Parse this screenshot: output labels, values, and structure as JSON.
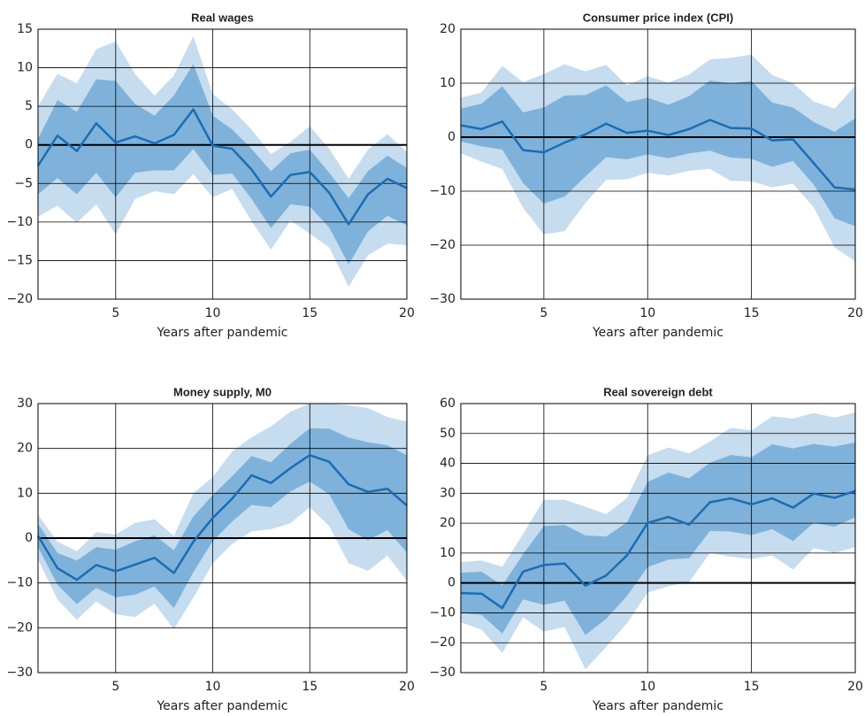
{
  "chart_data": [
    {
      "type": "line",
      "title": "Real wages",
      "xlabel": "Years after pandemic",
      "x": [
        1,
        2,
        3,
        4,
        5,
        6,
        7,
        8,
        9,
        10,
        11,
        12,
        13,
        14,
        15,
        16,
        17,
        18,
        19,
        20
      ],
      "xlim": [
        1,
        20
      ],
      "xticks": [
        5,
        10,
        15,
        20
      ],
      "ylim": [
        -20,
        15
      ],
      "yticks": [
        {
          "value": -20,
          "label": "−20"
        },
        {
          "value": -15,
          "label": "−15"
        },
        {
          "value": -10,
          "label": "−10"
        },
        {
          "value": -5,
          "label": "−5"
        },
        0,
        5,
        10,
        15
      ],
      "grid": true,
      "bands": [
        {
          "color": "#c6dcef",
          "upper": [
            5.0,
            9.2,
            8.0,
            12.4,
            13.4,
            9.2,
            6.4,
            9.0,
            14.1,
            6.6,
            4.6,
            2.0,
            -1.2,
            0.4,
            2.4,
            -0.5,
            -4.4,
            -0.6,
            1.4,
            -0.9
          ],
          "lower": [
            -9.3,
            -7.9,
            -10.1,
            -7.7,
            -11.6,
            -7.0,
            -6.0,
            -6.4,
            -3.8,
            -6.8,
            -5.7,
            -9.9,
            -13.6,
            -9.8,
            -11.5,
            -13.3,
            -18.4,
            -14.3,
            -12.8,
            -13.0
          ]
        },
        {
          "color": "#7eb2da",
          "upper": [
            0.8,
            5.8,
            4.3,
            8.5,
            8.3,
            5.3,
            3.8,
            6.4,
            10.5,
            3.8,
            2.0,
            -0.5,
            -3.4,
            -1.1,
            -0.6,
            -3.6,
            -6.9,
            -3.4,
            -1.4,
            -3.0
          ],
          "lower": [
            -6.4,
            -4.3,
            -6.4,
            -3.6,
            -6.8,
            -3.6,
            -3.3,
            -3.3,
            -0.5,
            -3.9,
            -3.7,
            -7.0,
            -10.8,
            -7.7,
            -8.0,
            -10.7,
            -15.5,
            -11.2,
            -9.2,
            -10.4
          ]
        }
      ],
      "series": [
        {
          "color": "#1a6db4",
          "values": [
            -2.7,
            1.2,
            -0.8,
            2.8,
            0.3,
            1.1,
            0.2,
            1.3,
            4.6,
            -0.1,
            -0.5,
            -3.2,
            -6.7,
            -3.9,
            -3.5,
            -6.2,
            -10.3,
            -6.4,
            -4.4,
            -5.6
          ]
        }
      ]
    },
    {
      "type": "line",
      "title": "Consumer price index (CPI)",
      "xlabel": "Years after pandemic",
      "x": [
        1,
        2,
        3,
        4,
        5,
        6,
        7,
        8,
        9,
        10,
        11,
        12,
        13,
        14,
        15,
        16,
        17,
        18,
        19,
        20
      ],
      "xlim": [
        1,
        20
      ],
      "xticks": [
        5,
        10,
        15,
        20
      ],
      "ylim": [
        -30,
        20
      ],
      "yticks": [
        {
          "value": -30,
          "label": "−30"
        },
        {
          "value": -20,
          "label": "−20"
        },
        {
          "value": -10,
          "label": "−10"
        },
        0,
        10,
        20
      ],
      "grid": true,
      "bands": [
        {
          "color": "#c6dcef",
          "upper": [
            7.3,
            8.3,
            13.2,
            10.2,
            11.7,
            13.5,
            12.2,
            13.4,
            9.6,
            11.3,
            10.1,
            11.6,
            14.4,
            14.7,
            15.3,
            11.5,
            10.0,
            6.6,
            5.3,
            9.5
          ],
          "lower": [
            -3.0,
            -4.5,
            -5.9,
            -13.1,
            -18.0,
            -17.4,
            -12.2,
            -7.9,
            -7.8,
            -6.6,
            -7.1,
            -6.2,
            -5.9,
            -8.1,
            -8.2,
            -9.3,
            -8.6,
            -13.0,
            -20.4,
            -23.0
          ]
        },
        {
          "color": "#7eb2da",
          "upper": [
            5.3,
            6.2,
            9.4,
            4.6,
            5.5,
            7.7,
            7.8,
            9.6,
            6.5,
            7.3,
            6.0,
            7.6,
            10.5,
            10.0,
            10.4,
            6.4,
            5.5,
            2.8,
            1.0,
            3.5
          ],
          "lower": [
            -0.8,
            -1.7,
            -2.3,
            -8.5,
            -12.3,
            -11.0,
            -7.3,
            -3.7,
            -4.1,
            -3.2,
            -3.9,
            -3.0,
            -2.5,
            -3.8,
            -4.0,
            -5.5,
            -4.4,
            -8.8,
            -15.0,
            -16.5
          ]
        }
      ],
      "series": [
        {
          "color": "#1a6db4",
          "values": [
            2.2,
            1.5,
            2.9,
            -2.4,
            -2.8,
            -1.0,
            0.5,
            2.5,
            0.8,
            1.2,
            0.4,
            1.5,
            3.2,
            1.7,
            1.6,
            -0.6,
            -0.4,
            -4.8,
            -9.3,
            -9.7
          ]
        }
      ]
    },
    {
      "type": "line",
      "title": "Money supply, M0",
      "xlabel": "Years after pandemic",
      "x": [
        1,
        2,
        3,
        4,
        5,
        6,
        7,
        8,
        9,
        10,
        11,
        12,
        13,
        14,
        15,
        16,
        17,
        18,
        19,
        20
      ],
      "xlim": [
        1,
        20
      ],
      "xticks": [
        5,
        10,
        15,
        20
      ],
      "ylim": [
        -30,
        30
      ],
      "yticks": [
        {
          "value": -30,
          "label": "−30"
        },
        {
          "value": -20,
          "label": "−20"
        },
        {
          "value": -10,
          "label": "−10"
        },
        0,
        10,
        20,
        30
      ],
      "grid": true,
      "bands": [
        {
          "color": "#c6dcef",
          "upper": [
            5.2,
            -0.8,
            -2.9,
            1.3,
            0.8,
            3.4,
            4.2,
            0.5,
            10.0,
            13.6,
            19.3,
            22.5,
            24.9,
            28.2,
            30,
            30,
            29.6,
            29.0,
            27.0,
            26.0
          ],
          "lower": [
            -4.7,
            -13.7,
            -18.2,
            -14.1,
            -17.0,
            -17.6,
            -14.6,
            -20.3,
            -13.3,
            -5.6,
            -1.3,
            1.5,
            2.0,
            3.3,
            6.9,
            2.7,
            -5.6,
            -7.3,
            -3.9,
            -9.5
          ]
        },
        {
          "color": "#7eb2da",
          "upper": [
            3.2,
            -3.3,
            -5.0,
            -2.0,
            -2.6,
            -0.7,
            0.6,
            -2.7,
            4.8,
            9.6,
            13.8,
            18.3,
            16.9,
            21.0,
            24.5,
            24.4,
            22.4,
            21.4,
            20.7,
            18.5
          ],
          "lower": [
            -2.0,
            -10.4,
            -14.7,
            -11.1,
            -13.2,
            -12.6,
            -10.8,
            -15.6,
            -7.6,
            -0.7,
            3.7,
            7.4,
            6.9,
            10.4,
            12.6,
            9.8,
            2.0,
            -0.5,
            1.8,
            -3.2
          ]
        }
      ],
      "series": [
        {
          "color": "#1a6db4",
          "values": [
            0.5,
            -6.7,
            -9.3,
            -6.0,
            -7.4,
            -5.9,
            -4.4,
            -7.8,
            -0.8,
            4.5,
            8.8,
            14.0,
            12.3,
            15.6,
            18.5,
            17.0,
            12.0,
            10.3,
            11.0,
            7.3
          ]
        }
      ]
    },
    {
      "type": "line",
      "title": "Real sovereign debt",
      "xlabel": "Years after pandemic",
      "x": [
        1,
        2,
        3,
        4,
        5,
        6,
        7,
        8,
        9,
        10,
        11,
        12,
        13,
        14,
        15,
        16,
        17,
        18,
        19,
        20
      ],
      "xlim": [
        1,
        20
      ],
      "xticks": [
        5,
        10,
        15,
        20
      ],
      "ylim": [
        -30,
        60
      ],
      "yticks": [
        {
          "value": -30,
          "label": "−30"
        },
        {
          "value": -20,
          "label": "−20"
        },
        {
          "value": -10,
          "label": "−10"
        },
        0,
        10,
        20,
        30,
        40,
        50,
        60
      ],
      "grid": true,
      "bands": [
        {
          "color": "#c6dcef",
          "upper": [
            7.0,
            7.5,
            5.4,
            16.4,
            27.8,
            27.8,
            25.5,
            23.0,
            28.4,
            42.7,
            45.3,
            43.3,
            47.3,
            51.9,
            51.0,
            55.7,
            55.0,
            56.8,
            55.3,
            57.0
          ],
          "lower": [
            -13.2,
            -15.6,
            -23.4,
            -11.5,
            -16.3,
            -14.7,
            -28.9,
            -21.4,
            -13.5,
            -3.2,
            -1.1,
            0.3,
            10.0,
            8.8,
            8.0,
            9.2,
            4.5,
            11.7,
            10.0,
            12.0
          ]
        },
        {
          "color": "#7eb2da",
          "upper": [
            3.4,
            3.8,
            -0.8,
            9.6,
            19.0,
            19.4,
            15.9,
            15.5,
            20.2,
            33.8,
            36.9,
            35.0,
            40.2,
            42.8,
            42.0,
            46.4,
            45.0,
            46.5,
            45.6,
            47.0
          ],
          "lower": [
            -10.0,
            -10.7,
            -16.9,
            -5.5,
            -7.3,
            -5.9,
            -17.4,
            -12.0,
            -4.4,
            5.3,
            7.8,
            8.3,
            17.4,
            17.2,
            16.0,
            18.0,
            14.0,
            20.1,
            18.8,
            22.0
          ]
        }
      ],
      "series": [
        {
          "color": "#1a6db4",
          "values": [
            -3.4,
            -3.6,
            -8.4,
            3.8,
            6.0,
            6.5,
            -0.9,
            2.5,
            9.2,
            20.1,
            22.1,
            19.5,
            27.0,
            28.3,
            26.3,
            28.3,
            25.2,
            29.9,
            28.5,
            30.8
          ]
        }
      ]
    }
  ]
}
